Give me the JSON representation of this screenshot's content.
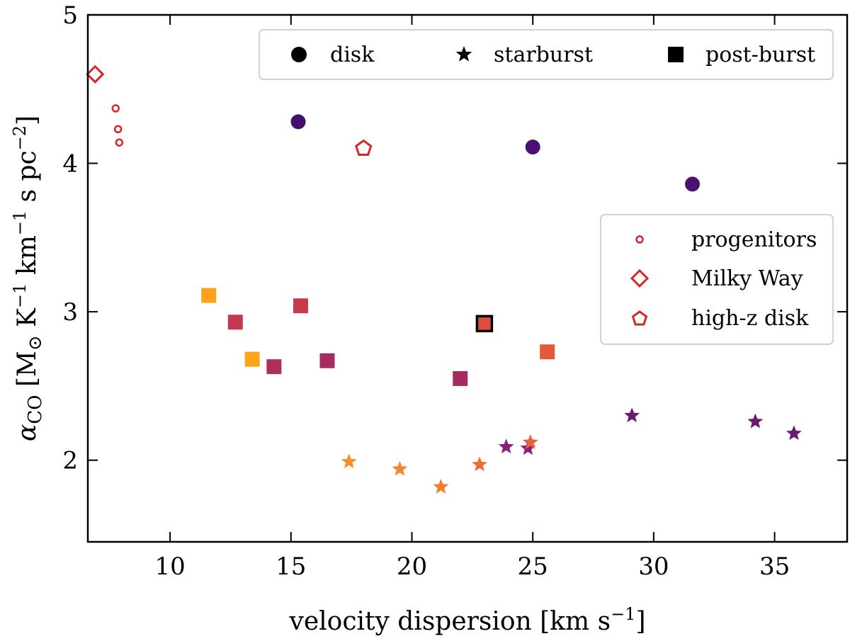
{
  "chart_data": {
    "type": "scatter",
    "title": "",
    "xlabel": "velocity dispersion [km s⁻¹]",
    "ylabel": "αCO [M⊙ K⁻¹ km⁻¹ s pc⁻²]",
    "ylabel_parts": {
      "symbol": "α",
      "subscript": "CO",
      "units": " [M",
      "sun": "⊙",
      "k": " K",
      "exp1": "−1",
      "km": " km",
      "exp2": "−1",
      "spc": " s pc",
      "exp3": "−2",
      "close": "]"
    },
    "xlabel_parts": {
      "main": "velocity dispersion [km s",
      "exp": "−1",
      "close": "]"
    },
    "xlim": [
      6.6,
      38
    ],
    "ylim": [
      1.45,
      5.0
    ],
    "xticks": [
      10,
      15,
      20,
      25,
      30,
      35
    ],
    "xtick_labels": [
      "10",
      "15",
      "20",
      "25",
      "30",
      "35"
    ],
    "yticks": [
      2,
      3,
      4,
      5
    ],
    "ytick_labels": [
      "2",
      "3",
      "4",
      "5"
    ],
    "grid": false,
    "legend_top": {
      "placement": "top-right",
      "entries": [
        {
          "label": "disk",
          "marker": "circle"
        },
        {
          "label": "starburst",
          "marker": "star"
        },
        {
          "label": "post-burst",
          "marker": "square"
        }
      ]
    },
    "legend_right": {
      "placement": "center-right",
      "entries": [
        {
          "label": "progenitors",
          "marker": "small-ring"
        },
        {
          "label": "Milky Way",
          "marker": "open-diamond"
        },
        {
          "label": "high-z disk",
          "marker": "open-pentagon"
        }
      ]
    },
    "series": [
      {
        "name": "disk",
        "marker": "circle",
        "points": [
          {
            "x": 15.3,
            "y": 4.28,
            "color": "#43106b"
          },
          {
            "x": 25.0,
            "y": 4.11,
            "color": "#4a1170"
          },
          {
            "x": 31.6,
            "y": 3.86,
            "color": "#4a1170"
          }
        ]
      },
      {
        "name": "starburst",
        "marker": "star",
        "points": [
          {
            "x": 17.4,
            "y": 1.99,
            "color": "#f88e2c"
          },
          {
            "x": 19.5,
            "y": 1.94,
            "color": "#f68430"
          },
          {
            "x": 21.2,
            "y": 1.82,
            "color": "#f57d2c"
          },
          {
            "x": 22.8,
            "y": 1.97,
            "color": "#ef6d35"
          },
          {
            "x": 23.9,
            "y": 2.09,
            "color": "#8c2177"
          },
          {
            "x": 24.8,
            "y": 2.08,
            "color": "#8c2177"
          },
          {
            "x": 24.9,
            "y": 2.12,
            "color": "#e8613a"
          },
          {
            "x": 29.1,
            "y": 2.3,
            "color": "#6e1a70"
          },
          {
            "x": 34.2,
            "y": 2.26,
            "color": "#6a1870"
          },
          {
            "x": 35.8,
            "y": 2.18,
            "color": "#6a1870"
          }
        ]
      },
      {
        "name": "post-burst",
        "marker": "square",
        "points": [
          {
            "x": 11.6,
            "y": 3.11,
            "color": "#fba21a"
          },
          {
            "x": 12.7,
            "y": 2.93,
            "color": "#c2384f"
          },
          {
            "x": 13.4,
            "y": 2.68,
            "color": "#fca51a"
          },
          {
            "x": 14.3,
            "y": 2.63,
            "color": "#ae2e5c"
          },
          {
            "x": 15.4,
            "y": 3.04,
            "color": "#c73b4c"
          },
          {
            "x": 16.5,
            "y": 2.67,
            "color": "#a52c60"
          },
          {
            "x": 22.0,
            "y": 2.55,
            "color": "#a52c60"
          },
          {
            "x": 23.0,
            "y": 2.92,
            "color": "#dd4d3f",
            "outlined": true
          },
          {
            "x": 25.6,
            "y": 2.73,
            "color": "#e05a3b"
          }
        ]
      },
      {
        "name": "progenitors",
        "marker": "small-ring",
        "points": [
          {
            "x": 7.75,
            "y": 4.37,
            "color": "#d62728"
          },
          {
            "x": 7.85,
            "y": 4.23,
            "color": "#d62728"
          },
          {
            "x": 7.9,
            "y": 4.14,
            "color": "#d62728"
          }
        ]
      },
      {
        "name": "Milky Way",
        "marker": "open-diamond",
        "points": [
          {
            "x": 6.9,
            "y": 4.6,
            "color": "#d62728"
          }
        ]
      },
      {
        "name": "high-z disk",
        "marker": "open-pentagon",
        "points": [
          {
            "x": 18.0,
            "y": 4.1,
            "color": "#d62728"
          }
        ]
      }
    ]
  }
}
